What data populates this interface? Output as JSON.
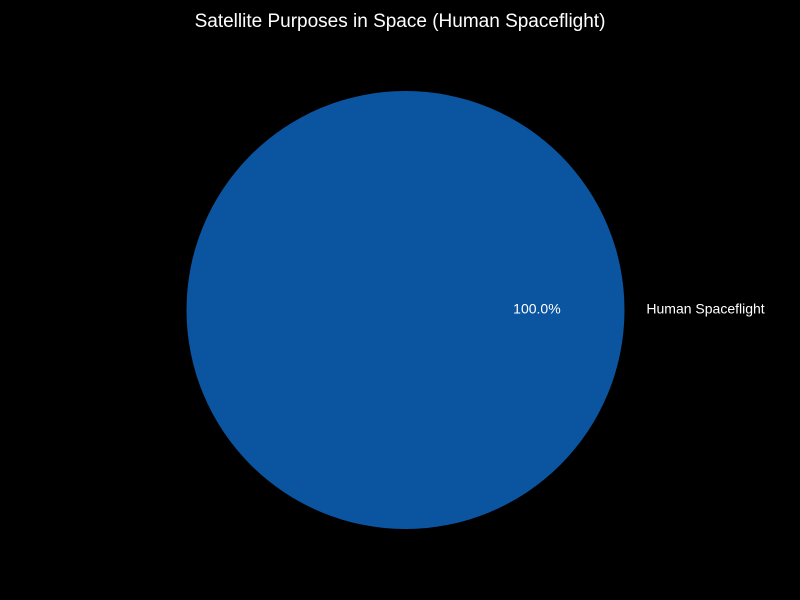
{
  "chart_data": {
    "type": "pie",
    "title": "Satellite Purposes in Space (Human Spaceflight)",
    "slices": [
      {
        "label": "Human Spaceflight",
        "value": 100.0,
        "percent_label": "100.0%",
        "color": "#0b55a0"
      }
    ],
    "background_color": "#000000",
    "text_color": "#ffffff",
    "legend": "none"
  }
}
